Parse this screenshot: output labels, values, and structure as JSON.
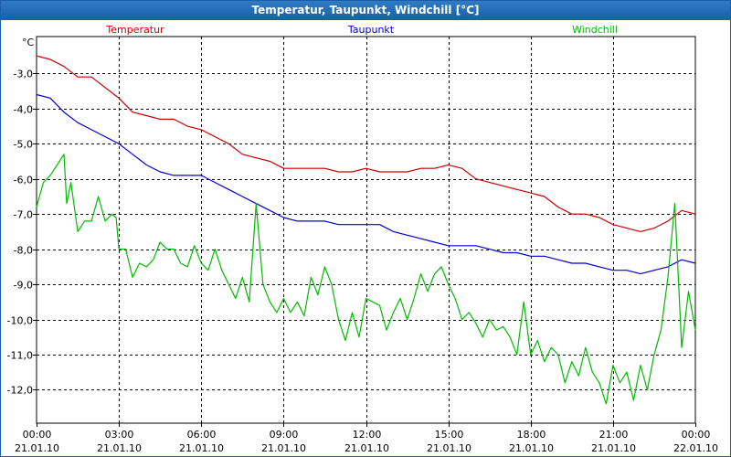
{
  "window": {
    "title": "Temperatur, Taupunkt, Windchill [°C]"
  },
  "chart_data": {
    "type": "line",
    "title": "Temperatur, Taupunkt, Windchill [°C]",
    "ylabel": "°C",
    "ylim": [
      -12.95,
      -1.95
    ],
    "yticks": [
      -3,
      -4,
      -5,
      -6,
      -7,
      -8,
      -9,
      -10,
      -11,
      -12
    ],
    "ytick_labels": [
      "-3,0",
      "-4,0",
      "-5,0",
      "-6,0",
      "-7,0",
      "-8,0",
      "-9,0",
      "-10,0",
      "-11,0",
      "-12,0"
    ],
    "xlim": [
      0,
      24
    ],
    "xticks": [
      0,
      3,
      6,
      9,
      12,
      15,
      18,
      21,
      24
    ],
    "xtick_time": [
      "00:00",
      "03:00",
      "06:00",
      "09:00",
      "12:00",
      "15:00",
      "18:00",
      "21:00",
      "00:00"
    ],
    "xtick_date": [
      "21.01.10",
      "21.01.10",
      "21.01.10",
      "21.01.10",
      "21.01.10",
      "21.01.10",
      "21.01.10",
      "21.01.10",
      "22.01.10"
    ],
    "grid": true,
    "legend": "top",
    "series": [
      {
        "name": "Temperatur",
        "color": "#cc0000",
        "x": [
          0,
          0.5,
          1,
          1.5,
          2,
          2.5,
          3,
          3.5,
          4,
          4.5,
          5,
          5.5,
          6,
          6.5,
          7,
          7.5,
          8,
          8.5,
          9,
          9.5,
          10,
          10.5,
          11,
          11.5,
          12,
          12.5,
          13,
          13.5,
          14,
          14.5,
          15,
          15.5,
          16,
          16.5,
          17,
          17.5,
          18,
          18.5,
          19,
          19.5,
          20,
          20.5,
          21,
          21.5,
          22,
          22.5,
          23,
          23.5,
          24
        ],
        "values": [
          -2.5,
          -2.6,
          -2.8,
          -3.1,
          -3.1,
          -3.4,
          -3.7,
          -4.1,
          -4.2,
          -4.3,
          -4.3,
          -4.5,
          -4.6,
          -4.8,
          -5.0,
          -5.3,
          -5.4,
          -5.5,
          -5.7,
          -5.7,
          -5.7,
          -5.7,
          -5.8,
          -5.8,
          -5.7,
          -5.8,
          -5.8,
          -5.8,
          -5.7,
          -5.7,
          -5.6,
          -5.7,
          -6.0,
          -6.1,
          -6.2,
          -6.3,
          -6.4,
          -6.5,
          -6.8,
          -7.0,
          -7.0,
          -7.1,
          -7.3,
          -7.4,
          -7.5,
          -7.4,
          -7.2,
          -6.9,
          -7.0
        ]
      },
      {
        "name": "Taupunkt",
        "color": "#0000cc",
        "x": [
          0,
          0.5,
          1,
          1.5,
          2,
          2.5,
          3,
          3.5,
          4,
          4.5,
          5,
          5.5,
          6,
          6.5,
          7,
          7.5,
          8,
          8.5,
          9,
          9.5,
          10,
          10.5,
          11,
          11.5,
          12,
          12.5,
          13,
          13.5,
          14,
          14.5,
          15,
          15.5,
          16,
          16.5,
          17,
          17.5,
          18,
          18.5,
          19,
          19.5,
          20,
          20.5,
          21,
          21.5,
          22,
          22.5,
          23,
          23.5,
          24
        ],
        "values": [
          -3.6,
          -3.7,
          -4.1,
          -4.4,
          -4.6,
          -4.8,
          -5.0,
          -5.3,
          -5.6,
          -5.8,
          -5.9,
          -5.9,
          -5.9,
          -6.1,
          -6.3,
          -6.5,
          -6.7,
          -6.9,
          -7.1,
          -7.2,
          -7.2,
          -7.2,
          -7.3,
          -7.3,
          -7.3,
          -7.3,
          -7.5,
          -7.6,
          -7.7,
          -7.8,
          -7.9,
          -7.9,
          -7.9,
          -8.0,
          -8.1,
          -8.1,
          -8.2,
          -8.2,
          -8.3,
          -8.4,
          -8.4,
          -8.5,
          -8.6,
          -8.6,
          -8.7,
          -8.6,
          -8.5,
          -8.3,
          -8.4
        ]
      },
      {
        "name": "Windchill",
        "color": "#00bb00",
        "x": [
          0,
          0.25,
          0.5,
          0.75,
          1,
          1.1,
          1.25,
          1.5,
          1.75,
          2,
          2.25,
          2.5,
          2.75,
          2.9,
          3,
          3.25,
          3.5,
          3.75,
          4,
          4.25,
          4.5,
          4.75,
          5,
          5.25,
          5.5,
          5.75,
          6,
          6.25,
          6.5,
          6.75,
          7,
          7.25,
          7.5,
          7.75,
          8,
          8.25,
          8.5,
          8.75,
          9,
          9.25,
          9.5,
          9.75,
          10,
          10.25,
          10.5,
          10.75,
          11,
          11.25,
          11.5,
          11.75,
          12,
          12.25,
          12.5,
          12.75,
          13,
          13.25,
          13.5,
          13.75,
          14,
          14.25,
          14.5,
          14.75,
          15,
          15.25,
          15.5,
          15.75,
          16,
          16.25,
          16.5,
          16.75,
          17,
          17.25,
          17.5,
          17.75,
          18,
          18.25,
          18.5,
          18.75,
          19,
          19.25,
          19.5,
          19.75,
          20,
          20.25,
          20.5,
          20.75,
          21,
          21.25,
          21.5,
          21.75,
          22,
          22.25,
          22.5,
          22.75,
          23,
          23.25,
          23.5,
          23.75,
          24
        ],
        "values": [
          -6.8,
          -6.1,
          -5.9,
          -5.6,
          -5.3,
          -6.7,
          -6.1,
          -7.5,
          -7.2,
          -7.2,
          -6.5,
          -7.2,
          -7.0,
          -7.1,
          -8.0,
          -8.0,
          -8.8,
          -8.4,
          -8.5,
          -8.3,
          -7.8,
          -8.0,
          -8.0,
          -8.4,
          -8.5,
          -7.9,
          -8.4,
          -8.6,
          -8.0,
          -8.6,
          -9.0,
          -9.4,
          -8.8,
          -9.5,
          -6.7,
          -9.0,
          -9.5,
          -9.8,
          -9.4,
          -9.8,
          -9.5,
          -9.9,
          -8.8,
          -9.3,
          -8.5,
          -9.0,
          -10.0,
          -10.6,
          -9.8,
          -10.5,
          -9.4,
          -9.5,
          -9.6,
          -10.3,
          -9.8,
          -9.4,
          -10.0,
          -9.4,
          -8.7,
          -9.2,
          -8.7,
          -8.5,
          -9.0,
          -9.4,
          -10.0,
          -9.8,
          -10.1,
          -10.5,
          -10.0,
          -10.3,
          -10.2,
          -10.5,
          -11.0,
          -9.5,
          -11.0,
          -10.6,
          -11.2,
          -10.8,
          -11.0,
          -11.8,
          -11.2,
          -11.6,
          -10.8,
          -11.5,
          -11.8,
          -12.4,
          -11.3,
          -11.8,
          -11.5,
          -12.3,
          -11.3,
          -12.0,
          -11.0,
          -10.3,
          -8.8,
          -6.7,
          -10.8,
          -9.2,
          -10.3
        ]
      }
    ]
  }
}
